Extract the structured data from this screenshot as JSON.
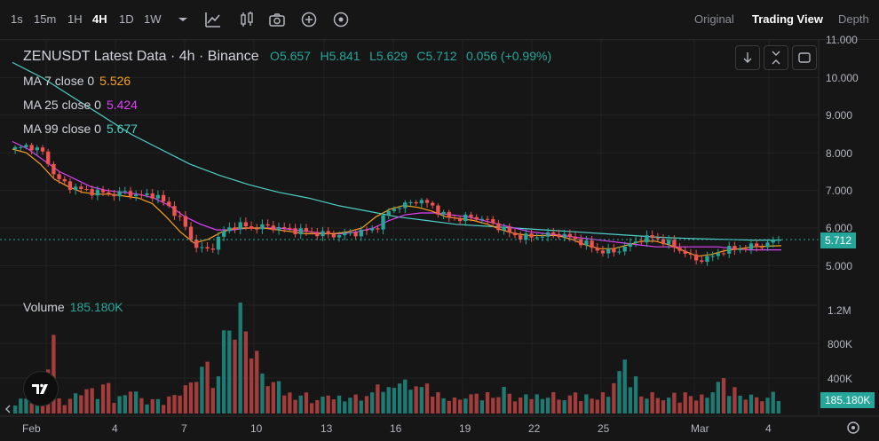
{
  "toolbar": {
    "intervals": [
      "1s",
      "15m",
      "1H",
      "4H",
      "1D",
      "1W"
    ],
    "active_interval": "4H",
    "views": [
      "Original",
      "Trading View",
      "Depth"
    ],
    "active_view": "Trading View"
  },
  "legend": {
    "title": "ZENUSDT Latest Data · 4h · Binance",
    "open_label": "O",
    "open": "5.657",
    "high_label": "H",
    "high": "5.841",
    "low_label": "L",
    "low": "5.629",
    "close_label": "C",
    "close": "5.712",
    "change": "0.056 (+0.99%)",
    "ma7_label": "MA 7 close 0",
    "ma7": "5.526",
    "ma25_label": "MA 25 close 0",
    "ma25": "5.424",
    "ma99_label": "MA 99 close 0",
    "ma99": "5.677",
    "volume_label": "Volume",
    "volume": "185.180K"
  },
  "price_axis": [
    "11.000",
    "10.000",
    "9.000",
    "8.000",
    "7.000",
    "6.000",
    "5.000"
  ],
  "volume_axis": [
    "1.2M",
    "800K",
    "400K"
  ],
  "current_price": "5.712",
  "current_volume": "185.180K",
  "time_axis": [
    "Feb",
    "4",
    "7",
    "10",
    "13",
    "16",
    "19",
    "22",
    "25",
    "Mar",
    "4"
  ],
  "colors": {
    "up": "#26a69a",
    "down": "#ef5350",
    "ma7": "#f7a21b",
    "ma25": "#e040fb",
    "ma99": "#4dd0c8"
  },
  "chart_data": {
    "type": "candlestick",
    "pair": "ZENUSDT",
    "interval": "4h",
    "ylim": [
      5.0,
      11.0
    ],
    "close_series_approx": [
      8.1,
      8.2,
      8.0,
      7.3,
      7.1,
      7.0,
      6.95,
      6.9,
      6.95,
      6.85,
      6.9,
      6.6,
      6.2,
      5.5,
      5.4,
      5.9,
      6.1,
      6.0,
      6.05,
      6.0,
      5.95,
      5.9,
      5.85,
      5.8,
      5.85,
      5.9,
      6.0,
      6.5,
      6.6,
      6.75,
      6.6,
      6.3,
      6.25,
      6.3,
      6.2,
      6.0,
      5.8,
      5.75,
      5.8,
      5.85,
      5.75,
      5.6,
      5.4,
      5.35,
      5.5,
      5.7,
      5.75,
      5.6,
      5.4,
      5.15,
      5.2,
      5.4,
      5.45,
      5.5,
      5.55,
      5.71
    ],
    "ma7_approx": [
      8.1,
      8.0,
      7.7,
      7.3,
      7.1,
      6.95,
      6.9,
      6.9,
      6.85,
      6.8,
      6.65,
      6.3,
      5.9,
      5.6,
      5.7,
      5.9,
      6.0,
      6.0,
      6.0,
      5.95,
      5.9,
      5.85,
      5.85,
      5.85,
      5.9,
      6.0,
      6.3,
      6.5,
      6.6,
      6.55,
      6.45,
      6.3,
      6.25,
      6.2,
      6.1,
      5.95,
      5.85,
      5.8,
      5.8,
      5.8,
      5.7,
      5.55,
      5.45,
      5.45,
      5.55,
      5.65,
      5.65,
      5.55,
      5.4,
      5.25,
      5.3,
      5.4,
      5.45,
      5.5,
      5.52,
      5.53
    ],
    "ma25_approx": [
      8.3,
      8.1,
      7.8,
      7.5,
      7.3,
      7.1,
      7.0,
      6.95,
      6.9,
      6.8,
      6.6,
      6.3,
      6.1,
      5.95,
      5.95,
      6.0,
      6.0,
      6.0,
      5.95,
      5.9,
      5.85,
      5.85,
      5.9,
      6.0,
      6.2,
      6.35,
      6.4,
      6.4,
      6.35,
      6.3,
      6.2,
      6.1,
      6.0,
      5.9,
      5.85,
      5.8,
      5.75,
      5.7,
      5.65,
      5.6,
      5.55,
      5.5,
      5.5,
      5.5,
      5.5,
      5.5,
      5.45,
      5.42,
      5.42,
      5.42
    ],
    "ma99_approx": [
      10.4,
      10.0,
      9.5,
      9.0,
      8.5,
      8.1,
      7.7,
      7.4,
      7.15,
      6.95,
      6.8,
      6.6,
      6.45,
      6.3,
      6.2,
      6.1,
      6.05,
      6.0,
      5.95,
      5.9,
      5.85,
      5.8,
      5.75,
      5.72,
      5.7,
      5.68,
      5.68
    ],
    "volume_approx_k": [
      150,
      120,
      800,
      150,
      200,
      250,
      300,
      180,
      230,
      150,
      140,
      180,
      300,
      500,
      400,
      800,
      1250,
      600,
      300,
      200,
      200,
      150,
      160,
      170,
      180,
      200,
      250,
      350,
      320,
      250,
      200,
      150,
      180,
      160,
      200,
      250,
      150,
      180,
      200,
      170,
      160,
      180,
      200,
      400,
      350,
      200,
      180,
      150,
      200,
      180,
      300,
      250,
      200,
      180,
      150,
      185
    ]
  }
}
